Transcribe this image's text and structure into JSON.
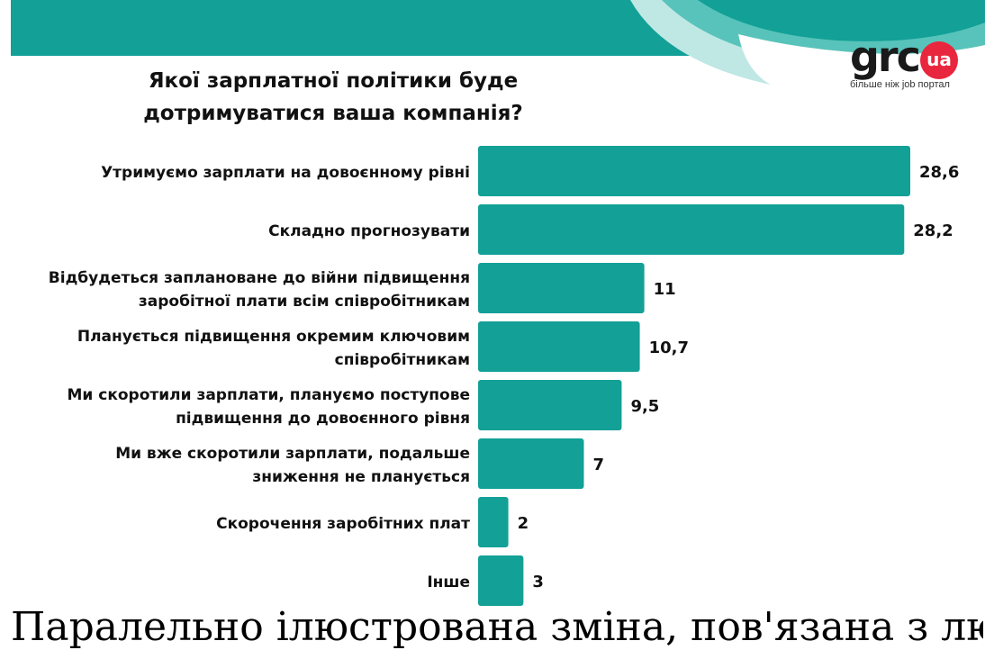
{
  "brand": {
    "logo_text": "grc",
    "logo_badge": "ua",
    "tagline": "більше ніж job портал",
    "colors": {
      "teal": "#12a097",
      "red": "#e8263d"
    }
  },
  "chart_data": {
    "type": "bar",
    "orientation": "horizontal",
    "title": "Якої зарплатної політики буде дотримуватися ваша компанія?",
    "categories": [
      [
        "Утримуємо зарплати на довоєнному рівні"
      ],
      [
        "Складно прогнозувати"
      ],
      [
        "Відбудеться заплановане до війни підвищення",
        "заробітної плати всім співробітникам"
      ],
      [
        "Планується підвищення окремим ключовим",
        "співробітникам"
      ],
      [
        "Ми скоротили зарплати, плануємо поступове",
        "підвищення до довоєнного рівня"
      ],
      [
        "Ми вже скоротили зарплати, подальше",
        "зниження не планується"
      ],
      [
        "Скорочення заробітних плат"
      ],
      [
        "Інше"
      ]
    ],
    "values": [
      28.6,
      28.2,
      11,
      10.7,
      9.5,
      7,
      2,
      3
    ],
    "value_labels": [
      "28,6",
      "28,2",
      "11",
      "10,7",
      "9,5",
      "7",
      "2",
      "3"
    ],
    "bar_color": "#12a097",
    "grid": false,
    "legend": "none"
  },
  "footer_cut_text": "Паралельно ілюстрована зміна, пов'язана з людьми і компанії"
}
